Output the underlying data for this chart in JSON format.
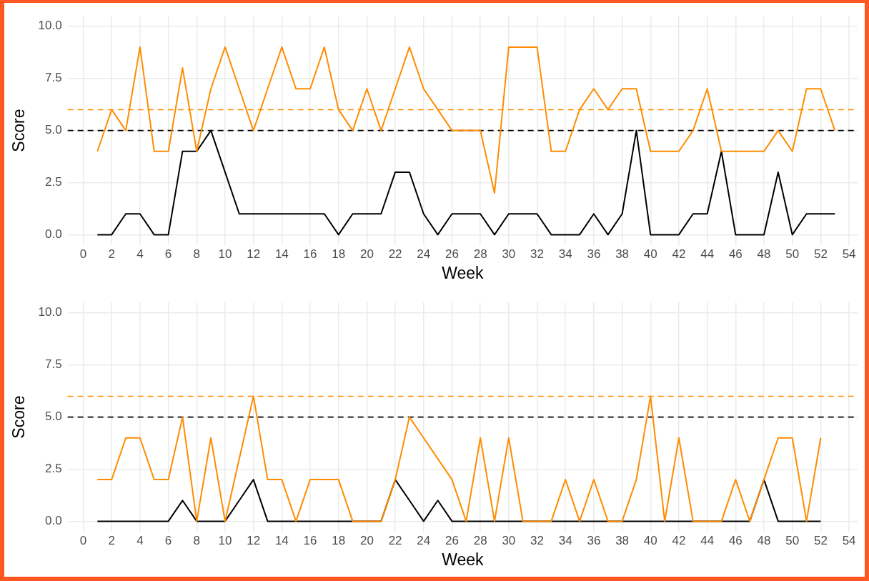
{
  "chart_data": [
    {
      "type": "line",
      "xlabel": "Week",
      "ylabel": "Score",
      "xlim": [
        -1.1,
        54.6
      ],
      "ylim": [
        -0.5,
        10.5
      ],
      "xticks": [
        0,
        2,
        4,
        6,
        8,
        10,
        12,
        14,
        16,
        18,
        20,
        22,
        24,
        26,
        28,
        30,
        32,
        34,
        36,
        38,
        40,
        42,
        44,
        46,
        48,
        50,
        52,
        54
      ],
      "yticks": [
        {
          "value": 0,
          "label": "0.0"
        },
        {
          "value": 2.5,
          "label": "2.5"
        },
        {
          "value": 5,
          "label": "5.0"
        },
        {
          "value": 7.5,
          "label": "7.5"
        },
        {
          "value": 10,
          "label": "10.0"
        }
      ],
      "grid": true,
      "x": [
        1,
        2,
        3,
        4,
        5,
        6,
        7,
        8,
        9,
        10,
        11,
        12,
        13,
        14,
        15,
        16,
        17,
        18,
        19,
        20,
        21,
        22,
        23,
        24,
        25,
        26,
        27,
        28,
        29,
        30,
        31,
        32,
        33,
        34,
        35,
        36,
        37,
        38,
        39,
        40,
        41,
        42,
        43,
        44,
        45,
        46,
        47,
        48,
        49,
        50,
        51,
        52,
        53
      ],
      "series": [
        {
          "color": "#ff8c00",
          "values": [
            4,
            6,
            5,
            9,
            4,
            4,
            8,
            4,
            7,
            9,
            7,
            5,
            7,
            9,
            7,
            7,
            9,
            6,
            5,
            7,
            5,
            7,
            9,
            7,
            6,
            5,
            5,
            5,
            2,
            9,
            9,
            9,
            4,
            4,
            6,
            7,
            6,
            7,
            7,
            4,
            4,
            4,
            5,
            7,
            4,
            4,
            4,
            4,
            5,
            4,
            7,
            7,
            5
          ]
        },
        {
          "color": "#000000",
          "values": [
            0,
            0,
            1,
            1,
            0,
            0,
            4,
            4,
            5,
            3,
            1,
            1,
            1,
            1,
            1,
            1,
            1,
            0,
            1,
            1,
            1,
            3,
            3,
            1,
            0,
            1,
            1,
            1,
            0,
            1,
            1,
            1,
            0,
            0,
            0,
            1,
            0,
            1,
            5,
            0,
            0,
            0,
            1,
            1,
            4,
            0,
            0,
            0,
            3,
            0,
            1,
            1,
            1
          ]
        }
      ],
      "ref_lines": [
        {
          "axis": "y",
          "value": 6,
          "color": "#ff8c00",
          "line_style": "dashed"
        },
        {
          "axis": "y",
          "value": 5,
          "color": "#000000",
          "line_style": "dashed"
        }
      ]
    },
    {
      "type": "line",
      "xlabel": "Week",
      "ylabel": "Score",
      "xlim": [
        -1.1,
        54.6
      ],
      "ylim": [
        -0.5,
        10.5
      ],
      "xticks": [
        0,
        2,
        4,
        6,
        8,
        10,
        12,
        14,
        16,
        18,
        20,
        22,
        24,
        26,
        28,
        30,
        32,
        34,
        36,
        38,
        40,
        42,
        44,
        46,
        48,
        50,
        52,
        54
      ],
      "yticks": [
        {
          "value": 0,
          "label": "0.0"
        },
        {
          "value": 2.5,
          "label": "2.5"
        },
        {
          "value": 5,
          "label": "5.0"
        },
        {
          "value": 7.5,
          "label": "7.5"
        },
        {
          "value": 10,
          "label": "10.0"
        }
      ],
      "grid": true,
      "x": [
        1,
        2,
        3,
        4,
        5,
        6,
        7,
        8,
        9,
        10,
        11,
        12,
        13,
        14,
        15,
        16,
        17,
        18,
        19,
        20,
        21,
        22,
        23,
        24,
        25,
        26,
        27,
        28,
        29,
        30,
        31,
        32,
        33,
        34,
        35,
        36,
        37,
        38,
        39,
        40,
        41,
        42,
        43,
        44,
        45,
        46,
        47,
        48,
        49,
        50,
        51,
        52
      ],
      "series": [
        {
          "color": "#ff8c00",
          "values": [
            2,
            2,
            4,
            4,
            2,
            2,
            5,
            0,
            4,
            0,
            3,
            6,
            2,
            2,
            0,
            2,
            2,
            2,
            0,
            0,
            0,
            2,
            5,
            4,
            3,
            2,
            0,
            4,
            0,
            4,
            0,
            0,
            0,
            2,
            0,
            2,
            0,
            0,
            2,
            6,
            0,
            4,
            0,
            0,
            0,
            2,
            0,
            2,
            4,
            4,
            0,
            4
          ]
        },
        {
          "color": "#000000",
          "values": [
            0,
            0,
            0,
            0,
            0,
            0,
            1,
            0,
            0,
            0,
            1,
            2,
            0,
            0,
            0,
            0,
            0,
            0,
            0,
            0,
            0,
            2,
            1,
            0,
            1,
            0,
            0,
            0,
            0,
            0,
            0,
            0,
            0,
            0,
            0,
            0,
            0,
            0,
            0,
            0,
            0,
            0,
            0,
            0,
            0,
            0,
            0,
            2,
            0,
            0,
            0,
            0
          ]
        }
      ],
      "ref_lines": [
        {
          "axis": "y",
          "value": 6,
          "color": "#ff8c00",
          "line_style": "dashed"
        },
        {
          "axis": "y",
          "value": 5,
          "color": "#000000",
          "line_style": "dashed"
        }
      ]
    }
  ]
}
